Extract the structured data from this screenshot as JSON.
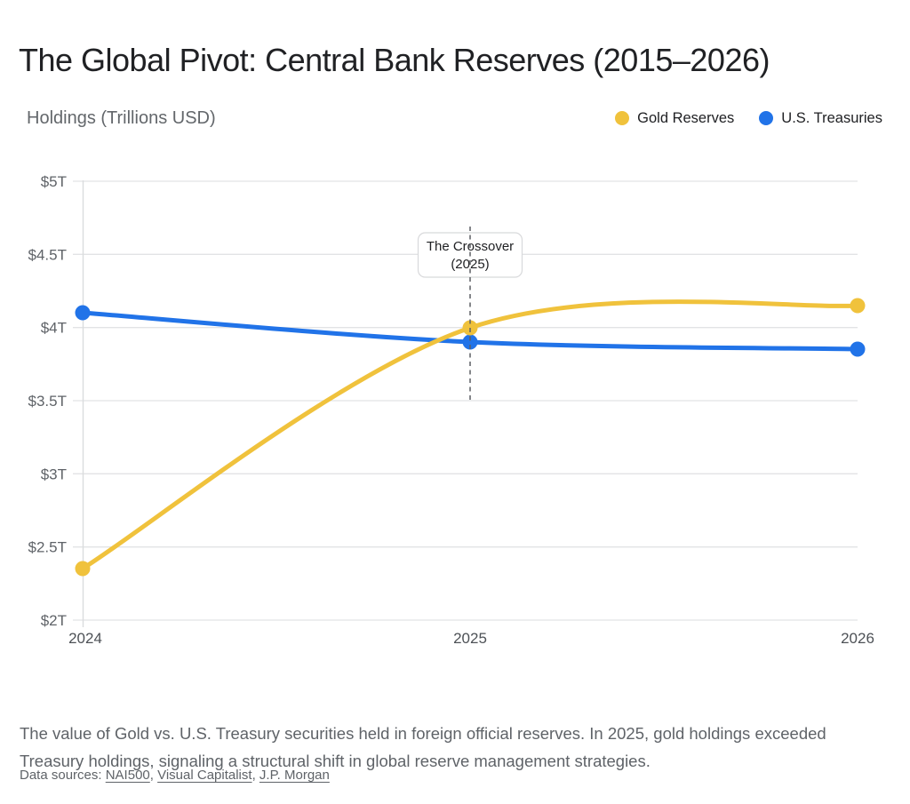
{
  "title": "The Global Pivot: Central Bank Reserves (2015–2026)",
  "y_axis_title": "Holdings (Trillions USD)",
  "legend": [
    {
      "label": "Gold Reserves",
      "color": "#F0C23C"
    },
    {
      "label": "U.S. Treasuries",
      "color": "#2173E8"
    }
  ],
  "annotation": {
    "line1": "The Crossover",
    "line2": "(2025)"
  },
  "chart_data": {
    "type": "line",
    "categories": [
      "2024",
      "2025",
      "2026"
    ],
    "series": [
      {
        "name": "Gold Reserves",
        "color": "#F0C23C",
        "values": [
          2.35,
          4.0,
          4.15
        ]
      },
      {
        "name": "U.S. Treasuries",
        "color": "#2173E8",
        "values": [
          4.1,
          3.9,
          3.85
        ]
      }
    ],
    "title": "The Global Pivot: Central Bank Reserves (2015–2026)",
    "xlabel": "",
    "ylabel": "Holdings (Trillions USD)",
    "ylim": [
      2,
      5
    ],
    "ytick_step": 0.5,
    "ytick_prefix": "$",
    "ytick_suffix": "T",
    "grid": true,
    "legend_position": "top-right",
    "annotation": {
      "text": "The Crossover (2025)",
      "x_category": "2025"
    }
  },
  "footer": {
    "description": "The value of Gold vs. U.S. Treasury securities held in foreign official reserves. In 2025, gold holdings exceeded Treasury holdings, signaling a structural shift in global reserve management strategies.",
    "sources_prefix": "Data sources: ",
    "sources": [
      "NAI500",
      "Visual Capitalist",
      "J.P. Morgan"
    ],
    "sources_separator": ", "
  },
  "colors": {
    "gold": "#F0C23C",
    "blue": "#2173E8",
    "gridline": "#E2E3E5",
    "axis_line": "#DADCDE",
    "dashed_line": "#5c5f63"
  }
}
